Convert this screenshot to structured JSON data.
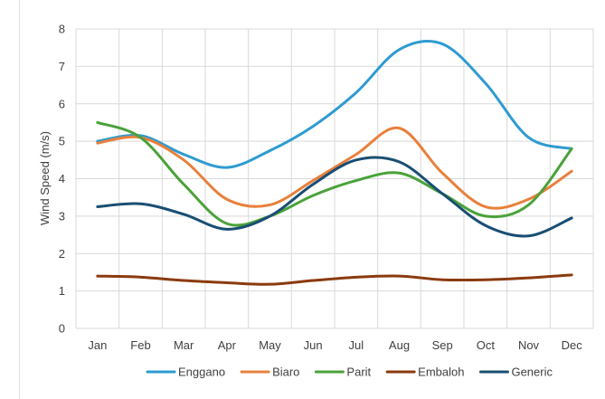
{
  "chart_data": {
    "type": "line",
    "categories": [
      "Jan",
      "Feb",
      "Mar",
      "Apr",
      "May",
      "Jun",
      "Jul",
      "Aug",
      "Sep",
      "Oct",
      "Nov",
      "Dec"
    ],
    "series": [
      {
        "name": "Enggano",
        "color": "#2E9BD1",
        "values": [
          5.0,
          5.15,
          4.65,
          4.3,
          4.75,
          5.4,
          6.3,
          7.45,
          7.6,
          6.55,
          5.1,
          4.8
        ]
      },
      {
        "name": "Biaro",
        "color": "#E8803C",
        "values": [
          4.95,
          5.1,
          4.5,
          3.45,
          3.3,
          3.95,
          4.65,
          5.35,
          4.15,
          3.25,
          3.45,
          4.2
        ]
      },
      {
        "name": "Parit",
        "color": "#4AA23A",
        "values": [
          5.5,
          5.1,
          3.85,
          2.8,
          3.0,
          3.55,
          3.95,
          4.15,
          3.6,
          3.0,
          3.3,
          4.8
        ]
      },
      {
        "name": "Embaloh",
        "color": "#8B3A0E",
        "values": [
          1.4,
          1.37,
          1.28,
          1.22,
          1.18,
          1.28,
          1.37,
          1.4,
          1.3,
          1.3,
          1.35,
          1.43
        ]
      },
      {
        "name": "Generic",
        "color": "#1A4E73",
        "values": [
          3.25,
          3.33,
          3.05,
          2.65,
          3.0,
          3.85,
          4.5,
          4.45,
          3.6,
          2.75,
          2.47,
          2.95
        ]
      }
    ],
    "title": "",
    "xlabel": "",
    "ylabel": "Wind Speed (m/s)",
    "ylim": [
      0,
      8
    ],
    "yticks": [
      "0",
      "1",
      "2",
      "3",
      "4",
      "5",
      "6",
      "7",
      "8"
    ],
    "grid": "both",
    "legend": "bottom"
  }
}
